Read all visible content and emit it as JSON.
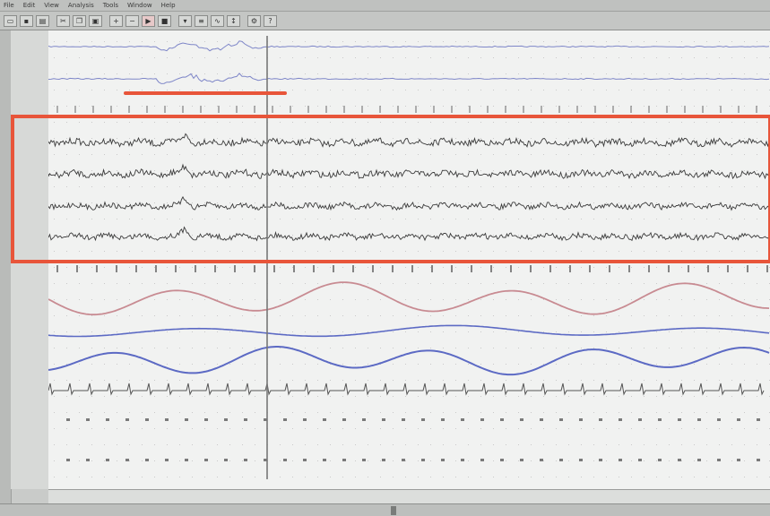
{
  "menu": {
    "items": [
      "File",
      "Edit",
      "View",
      "Analysis",
      "Tools",
      "Window",
      "Help"
    ]
  },
  "toolbar": {
    "buttons": [
      "open-icon",
      "save-icon",
      "print-icon",
      "cut-icon",
      "copy-icon",
      "paste-icon",
      "zoom-in-icon",
      "zoom-out-icon",
      "play-icon",
      "stop-icon",
      "marker-icon",
      "montage-icon",
      "filter-icon",
      "gain-icon",
      "settings-icon",
      "help-icon"
    ]
  },
  "channels": {
    "labels": [
      "",
      "",
      "",
      "",
      "",
      "",
      "",
      "",
      "",
      "",
      "",
      ""
    ]
  },
  "time_axis": {
    "labels": [
      "",
      "",
      "",
      "",
      "",
      ""
    ]
  },
  "status": {
    "text": ""
  },
  "colors": {
    "eeg_trace": "#3b3b3b",
    "eog_trace": "#7e86c8",
    "resp_pink": "#c88b92",
    "resp_blue": "#5c6ac4",
    "highlight_box": "#e8553a",
    "cursor_line": "#777777",
    "grid_dots": "#c9c9c9"
  }
}
